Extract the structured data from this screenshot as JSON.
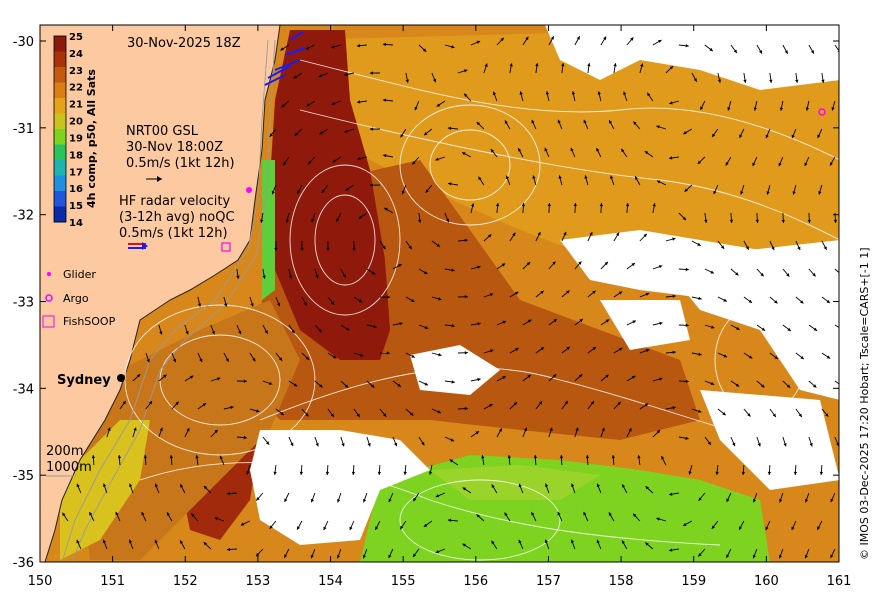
{
  "map": {
    "date_label": "30-Nov-2025 18Z",
    "colorbar": {
      "title": "4h comp, p50, All Sats",
      "ticks": [
        "25",
        "24",
        "23",
        "22",
        "21",
        "20",
        "19",
        "18",
        "17",
        "16",
        "15",
        "14"
      ],
      "colors": [
        "#8b1a0a",
        "#a8330a",
        "#c55a0f",
        "#d97e12",
        "#e3a41a",
        "#c8c41e",
        "#7ed321",
        "#2ec25a",
        "#1fb3b0",
        "#1f8fe0",
        "#1f57d8",
        "#0a2ca8"
      ]
    },
    "gsl_label": [
      "NRT00 GSL",
      "30-Nov 18:00Z",
      "0.5m/s (1kt 12h)"
    ],
    "hf_label": [
      "HF radar velocity",
      "(3-12h avg) noQC",
      "0.5m/s (1kt 12h)"
    ],
    "legend": {
      "glider": "Glider",
      "argo": "Argo",
      "fishsoop": "FishSOOP"
    },
    "city": "Sydney",
    "depth_labels": [
      "200m",
      "1000m"
    ],
    "credit": "© IMOS 03-Dec-2025 17:20 Hobart; Tscale=CARS+[-1 1]",
    "x_ticks": [
      "150",
      "151",
      "152",
      "153",
      "154",
      "155",
      "156",
      "157",
      "158",
      "159",
      "160",
      "161"
    ],
    "y_ticks": [
      "-30",
      "-31",
      "-32",
      "-33",
      "-34",
      "-35",
      "-36"
    ],
    "colors": {
      "land": "#fcc9a0",
      "warm": "#c45f10",
      "hot": "#8f1a0b",
      "mid": "#e39a1a",
      "cool": "#7ed321",
      "cloud": "#ffffff"
    }
  }
}
